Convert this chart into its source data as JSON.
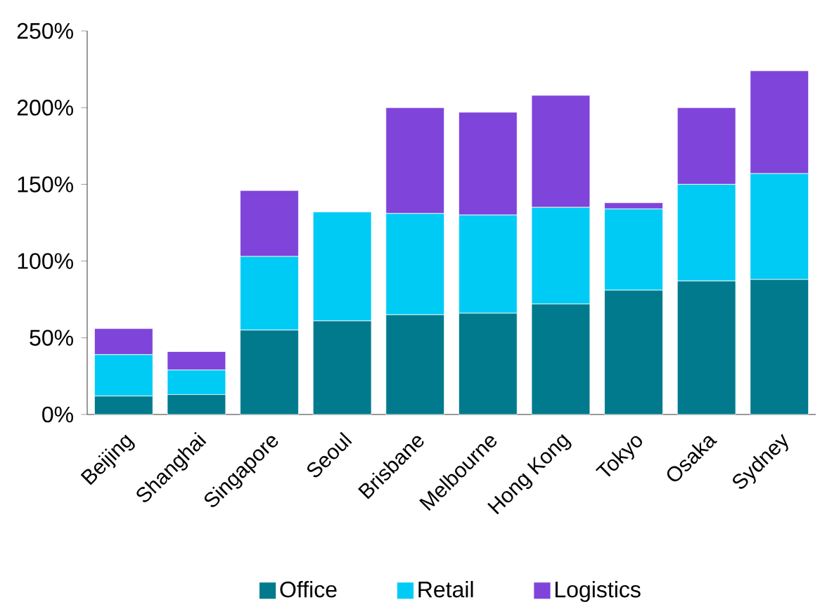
{
  "chart_data": {
    "type": "bar",
    "stacked": true,
    "categories": [
      "Beijing",
      "Shanghai",
      "Singapore",
      "Seoul",
      "Brisbane",
      "Melbourne",
      "Hong Kong",
      "Tokyo",
      "Osaka",
      "Sydney"
    ],
    "series": [
      {
        "name": "Office",
        "color": "#007a8c",
        "values": [
          12,
          13,
          55,
          61,
          65,
          66,
          72,
          81,
          87,
          88
        ]
      },
      {
        "name": "Retail",
        "color": "#00cbf5",
        "values": [
          27,
          16,
          48,
          71,
          66,
          64,
          63,
          53,
          63,
          69
        ]
      },
      {
        "name": "Logistics",
        "color": "#7f44d9",
        "values": [
          17,
          12,
          43,
          0,
          69,
          67,
          73,
          4,
          50,
          67
        ]
      }
    ],
    "ylim": [
      0,
      250
    ],
    "yticks": [
      {
        "value": 0,
        "label": "0%"
      },
      {
        "value": 50,
        "label": "50%"
      },
      {
        "value": 100,
        "label": "100%"
      },
      {
        "value": 150,
        "label": "150%"
      },
      {
        "value": 200,
        "label": "200%"
      },
      {
        "value": 250,
        "label": "250%"
      }
    ],
    "grid": false,
    "legend": "bottom"
  }
}
